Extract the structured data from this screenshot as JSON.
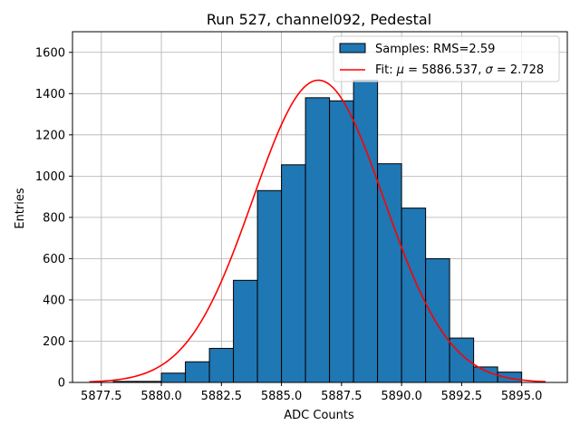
{
  "chart_data": {
    "type": "bar",
    "title": "Run 527, channel092, Pedestal",
    "xlabel": "ADC Counts",
    "ylabel": "Entries",
    "xlim": [
      5876.3,
      5896.9
    ],
    "ylim": [
      0,
      1700
    ],
    "grid": true,
    "xticks": [
      5877.5,
      5880.0,
      5882.5,
      5885.0,
      5887.5,
      5890.0,
      5892.5,
      5895.0
    ],
    "xtick_labels": [
      "5877.5",
      "5880.0",
      "5882.5",
      "5885.0",
      "5887.5",
      "5890.0",
      "5892.5",
      "5895.0"
    ],
    "yticks": [
      0,
      200,
      400,
      600,
      800,
      1000,
      1200,
      1400,
      1600
    ],
    "ytick_labels": [
      "0",
      "200",
      "400",
      "600",
      "800",
      "1000",
      "1200",
      "1400",
      "1600"
    ],
    "bins": {
      "edges": [
        5878,
        5879,
        5880,
        5881,
        5882,
        5883,
        5884,
        5885,
        5886,
        5887,
        5888,
        5889,
        5890,
        5891,
        5892,
        5893,
        5894
      ],
      "counts": [
        5,
        5,
        45,
        100,
        165,
        495,
        930,
        1055,
        1380,
        1365,
        1465,
        1060,
        845,
        600,
        215,
        75,
        50
      ]
    },
    "fit": {
      "mu": 5886.537,
      "sigma": 2.728,
      "amplitude": 1465,
      "x_range": [
        5877,
        5896
      ]
    },
    "series": [
      {
        "name": "Samples: RMS=2.59",
        "kind": "histogram",
        "color": "#1f77b4",
        "edge_color": "#000000"
      },
      {
        "name": "Fit: μ = 5886.537, σ = 2.728",
        "kind": "line",
        "color": "#ff0000"
      }
    ],
    "legend_position": "top-right",
    "legend": {
      "samples_label": "Samples: RMS=2.59",
      "fit_prefix": "Fit: ",
      "fit_mu_symbol": "μ",
      "fit_mu_value": " = 5886.537, ",
      "fit_sigma_symbol": "σ",
      "fit_sigma_value": " = 2.728"
    }
  }
}
